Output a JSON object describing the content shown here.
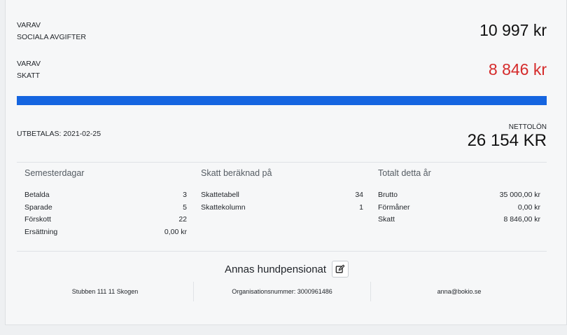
{
  "sociala": {
    "line1": "VARAV",
    "line2": "SOCIALA AVGIFTER",
    "amount": "10 997 kr"
  },
  "skatt": {
    "line1": "VARAV",
    "line2": "SKATT",
    "amount": "8 846 kr"
  },
  "payout": {
    "label": "UTBETALAS: 2021-02-25",
    "netto_label": "NETTOLÖN",
    "netto_value": "26 154 KR"
  },
  "colors": {
    "bar": "#1565e0",
    "negative": "#d52b2b"
  },
  "semester": {
    "title": "Semesterdagar",
    "rows": [
      {
        "label": "Betalda",
        "value": "3"
      },
      {
        "label": "Sparade",
        "value": "5"
      },
      {
        "label": "Förskott",
        "value": "22"
      },
      {
        "label": "Ersättning",
        "value": "0,00 kr"
      }
    ]
  },
  "skatt_basis": {
    "title": "Skatt beräknad på",
    "rows": [
      {
        "label": "Skattetabell",
        "value": "34"
      },
      {
        "label": "Skattekolumn",
        "value": "1"
      }
    ]
  },
  "totals": {
    "title": "Totalt detta år",
    "rows": [
      {
        "label": "Brutto",
        "value": "35 000,00 kr"
      },
      {
        "label": "Förmåner",
        "value": "0,00 kr"
      },
      {
        "label": "Skatt",
        "value": "8 846,00 kr"
      }
    ]
  },
  "company": {
    "name": "Annas hundpensionat",
    "edit_icon": "edit-icon",
    "address": "Stubben 111 11 Skogen",
    "org": "Organisationsnummer: 3000961486",
    "email": "anna@bokio.se"
  }
}
